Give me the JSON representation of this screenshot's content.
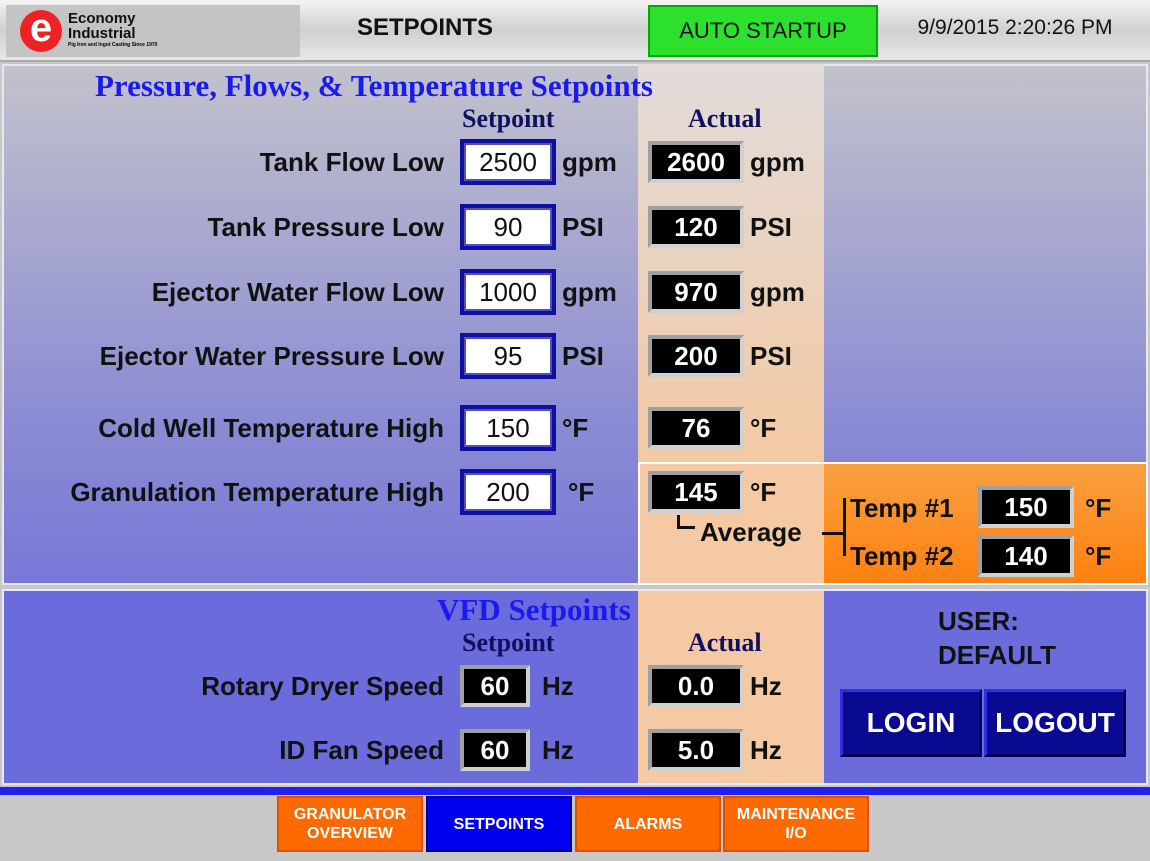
{
  "header": {
    "logo_line1": "Economy",
    "logo_line2": "Industrial",
    "logo_tagline": "Pig Iron and Ingot Casting Since 1970",
    "title": "SETPOINTS",
    "auto_startup": "AUTO STARTUP",
    "datetime": "9/9/2015 2:20:26 PM"
  },
  "pressure": {
    "title": "Pressure, Flows, & Temperature Setpoints",
    "col_setpoint": "Setpoint",
    "col_actual": "Actual",
    "rows": [
      {
        "label": "Tank Flow Low",
        "setpoint": "2500",
        "unit": "gpm",
        "actual": "2600",
        "actual_unit": "gpm"
      },
      {
        "label": "Tank Pressure Low",
        "setpoint": "90",
        "unit": "PSI",
        "actual": "120",
        "actual_unit": "PSI"
      },
      {
        "label": "Ejector Water Flow Low",
        "setpoint": "1000",
        "unit": "gpm",
        "actual": "970",
        "actual_unit": "gpm"
      },
      {
        "label": "Ejector Water Pressure Low",
        "setpoint": "95",
        "unit": "PSI",
        "actual": "200",
        "actual_unit": "PSI"
      },
      {
        "label": "Cold Well Temperature High",
        "setpoint": "150",
        "unit": "°F",
        "actual": "76",
        "actual_unit": "°F"
      },
      {
        "label": "Granulation Temperature High",
        "setpoint": "200",
        "unit": "°F",
        "actual": "145",
        "actual_unit": "°F"
      }
    ],
    "average_label": "Average",
    "temp1_label": "Temp #1",
    "temp1": "150",
    "temp2_label": "Temp #2",
    "temp2": "140",
    "temp_unit": "°F"
  },
  "vfd": {
    "title": "VFD Setpoints",
    "col_setpoint": "Setpoint",
    "col_actual": "Actual",
    "rows": [
      {
        "label": "Rotary Dryer Speed",
        "setpoint": "60",
        "unit": "Hz",
        "actual": "0.0",
        "actual_unit": "Hz"
      },
      {
        "label": "ID Fan Speed",
        "setpoint": "60",
        "unit": "Hz",
        "actual": "5.0",
        "actual_unit": "Hz"
      }
    ]
  },
  "user": {
    "line1": "USER:",
    "line2": "DEFAULT",
    "login": "LOGIN",
    "logout": "LOGOUT"
  },
  "nav": [
    {
      "label": "GRANULATOR\nOVERVIEW"
    },
    {
      "label": "SETPOINTS",
      "active": true
    },
    {
      "label": "ALARMS"
    },
    {
      "label": "MAINTENANCE\nI/O"
    }
  ],
  "colors": {
    "auto_startup": "#2de02d",
    "nav_active": "#0000ee",
    "nav": "#ff6a00",
    "section_title": "#1a1aee"
  }
}
